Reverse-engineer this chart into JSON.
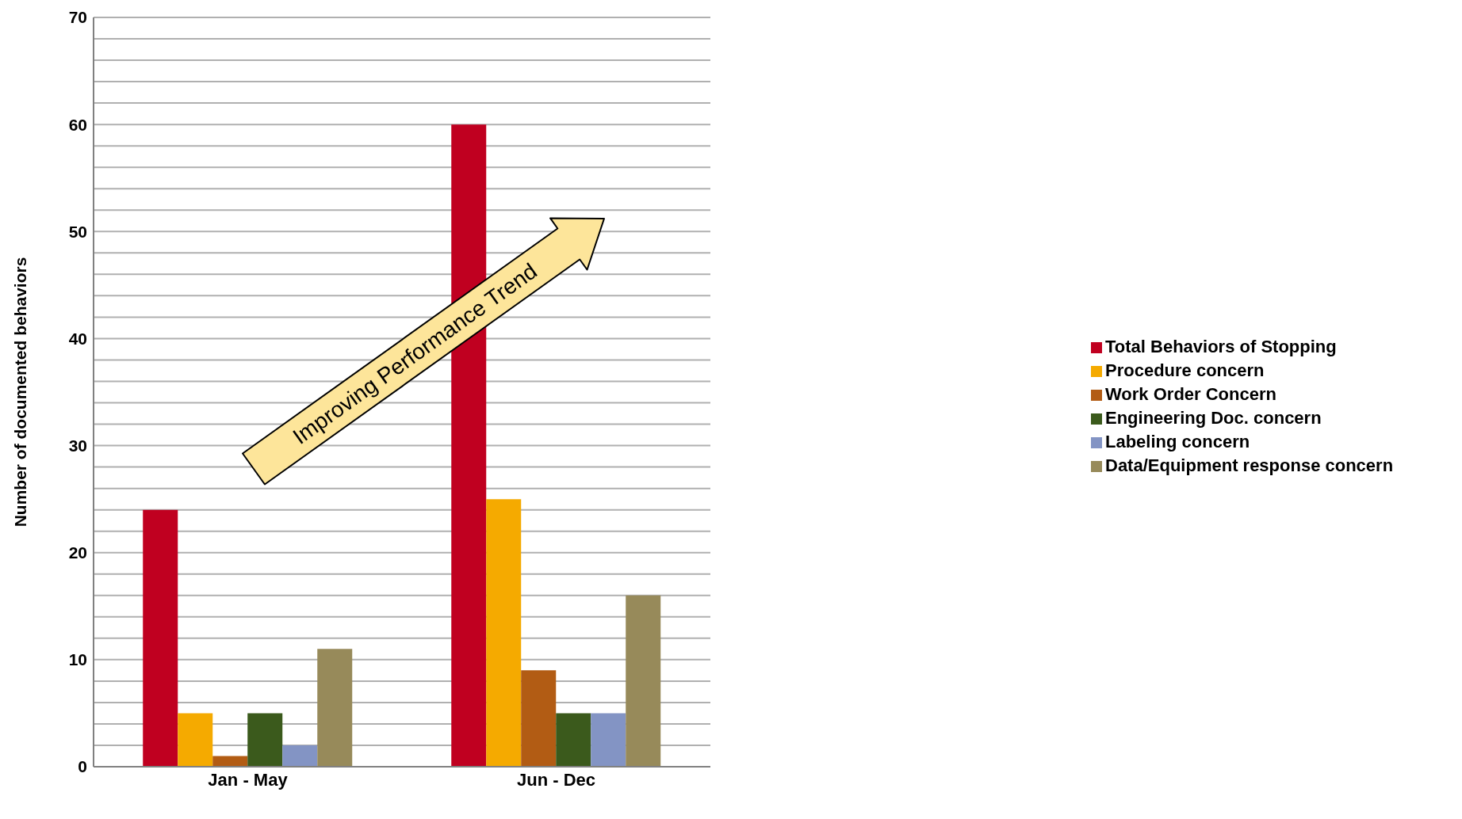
{
  "chart_data": {
    "type": "bar",
    "ylabel": "Number of documented behaviors",
    "categories": [
      "Jan - May",
      "Jun - Dec"
    ],
    "series": [
      {
        "name": "Total Behaviors of Stopping",
        "color": "#c00020",
        "values": [
          24,
          60
        ]
      },
      {
        "name": "Procedure concern",
        "color": "#f5aa00",
        "values": [
          5,
          25
        ]
      },
      {
        "name": "Work Order Concern",
        "color": "#b25c14",
        "values": [
          1,
          9
        ]
      },
      {
        "name": "Engineering Doc. concern",
        "color": "#3b5a1c",
        "values": [
          5,
          5
        ]
      },
      {
        "name": "Labeling concern",
        "color": "#8394c4",
        "values": [
          2,
          5
        ]
      },
      {
        "name": "Data/Equipment response concern",
        "color": "#978a5a",
        "values": [
          11,
          16
        ]
      }
    ],
    "ylim": [
      0,
      70
    ],
    "yticks": [
      0,
      {
        "value": 2,
        "label": null
      },
      {
        "value": 4,
        "label": null
      },
      {
        "value": 6,
        "label": null
      },
      {
        "value": 8,
        "label": null
      },
      10,
      {
        "value": 12,
        "label": null
      },
      {
        "value": 14,
        "label": null
      },
      {
        "value": 16,
        "label": null
      },
      {
        "value": 18,
        "label": null
      },
      20,
      {
        "value": 22,
        "label": null
      },
      {
        "value": 24,
        "label": null
      },
      {
        "value": 26,
        "label": null
      },
      {
        "value": 28,
        "label": null
      },
      30,
      {
        "value": 32,
        "label": null
      },
      {
        "value": 34,
        "label": null
      },
      {
        "value": 36,
        "label": null
      },
      {
        "value": 38,
        "label": null
      },
      40,
      {
        "value": 42,
        "label": null
      },
      {
        "value": 44,
        "label": null
      },
      {
        "value": 46,
        "label": null
      },
      {
        "value": 48,
        "label": null
      },
      50,
      {
        "value": 52,
        "label": null
      },
      {
        "value": 54,
        "label": null
      },
      {
        "value": 56,
        "label": null
      },
      {
        "value": 58,
        "label": null
      },
      60,
      {
        "value": 62,
        "label": null
      },
      {
        "value": 64,
        "label": null
      },
      {
        "value": 66,
        "label": null
      },
      {
        "value": 68,
        "label": null
      },
      70
    ],
    "grid": "y",
    "legend": "right",
    "annotations": [
      "Improving Performance Trend"
    ]
  }
}
